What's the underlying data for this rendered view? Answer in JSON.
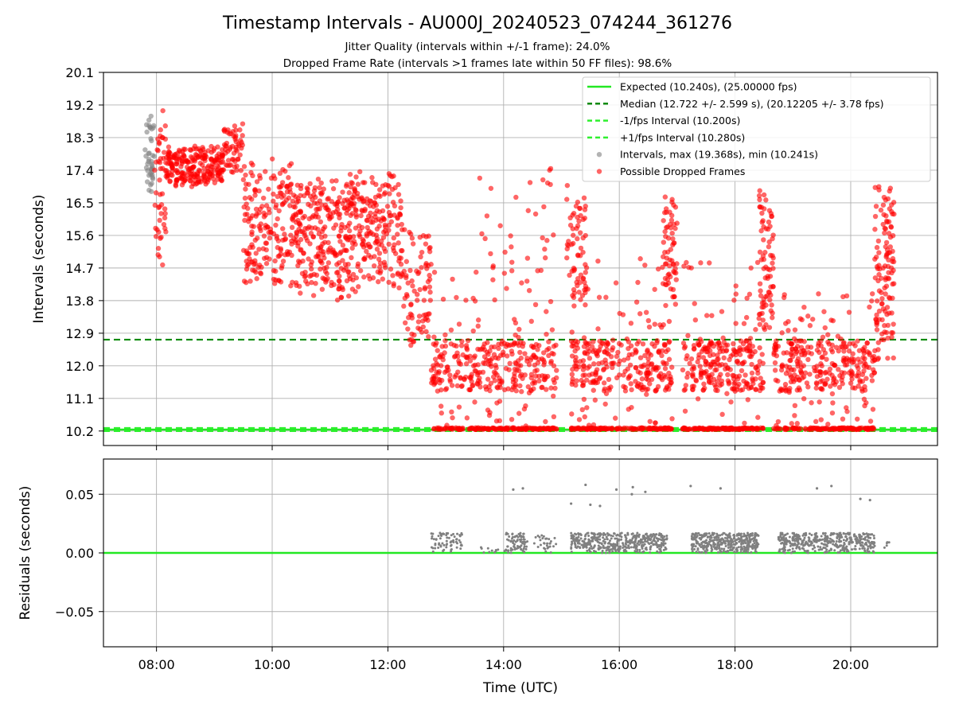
{
  "title": "Timestamp Intervals - AU000J_20240523_074244_361276",
  "subtitle_1": "Jitter Quality (intervals within +/-1 frame): 24.0%",
  "subtitle_2": "Dropped Frame Rate (intervals >1 frames late within 50 FF files): 98.6%",
  "colors": {
    "expected": "#22e822",
    "median": "#0a8a0a",
    "interval_bounds": "#2ff02f",
    "intervals": "#808080",
    "dropped": "#ff0000",
    "grid": "#b0b0b0"
  },
  "chart_data": [
    {
      "type": "scatter",
      "panel": "intervals",
      "ylabel": "Intervals (seconds)",
      "xlabel": "",
      "xlim": [
        "07:05",
        "21:30"
      ],
      "ylim": [
        9.8,
        20.1
      ],
      "xticks": [
        "08:00",
        "10:00",
        "12:00",
        "14:00",
        "16:00",
        "18:00",
        "20:00"
      ],
      "yticks": [
        "10.2",
        "11.1",
        "12.0",
        "12.9",
        "13.8",
        "14.7",
        "15.6",
        "16.5",
        "17.4",
        "18.3",
        "19.2",
        "20.1"
      ],
      "grid": true,
      "legend_position": "top-right",
      "lines": [
        {
          "name": "Expected (10.240s), (25.00000 fps)",
          "y": 10.24,
          "style": "solid"
        },
        {
          "name": "Median (12.722 +/- 2.599 s), (20.12205 +/- 3.78 fps)",
          "y": 12.722,
          "style": "dashed"
        },
        {
          "name": "-1/fps Interval (10.200s)",
          "y": 10.2,
          "style": "dashed"
        },
        {
          "name": "+1/fps Interval (10.280s)",
          "y": 10.28,
          "style": "dashed"
        }
      ],
      "series": [
        {
          "name": "Intervals, max (19.368s), min (10.241s)",
          "marker": "circle",
          "clusters": [
            {
              "x_start": "07:48",
              "x_end": "07:58",
              "y_min": 16.8,
              "y_max": 18.9,
              "count": 40
            }
          ]
        },
        {
          "name": "Possible Dropped Frames",
          "marker": "circle",
          "clusters": [
            {
              "x_start": "07:58",
              "x_end": "08:10",
              "y_min": 14.3,
              "y_max": 19.3,
              "count": 50
            },
            {
              "x_start": "08:10",
              "x_end": "09:10",
              "y_min": 16.9,
              "y_max": 18.1,
              "count": 240
            },
            {
              "x_start": "09:10",
              "x_end": "09:30",
              "y_min": 17.2,
              "y_max": 18.8,
              "count": 55
            },
            {
              "x_start": "09:30",
              "x_end": "10:20",
              "y_min": 14.0,
              "y_max": 17.9,
              "count": 180
            },
            {
              "x_start": "10:20",
              "x_end": "11:20",
              "y_min": 13.7,
              "y_max": 17.4,
              "count": 260
            },
            {
              "x_start": "11:20",
              "x_end": "12:15",
              "y_min": 13.9,
              "y_max": 17.5,
              "count": 220
            },
            {
              "x_start": "12:15",
              "x_end": "12:45",
              "y_min": 12.3,
              "y_max": 16.2,
              "count": 80
            },
            {
              "x_start": "12:45",
              "x_end": "13:35",
              "y_min": 10.24,
              "y_max": 14.6,
              "count": 180
            },
            {
              "x_start": "13:35",
              "x_end": "14:55",
              "y_min": 10.24,
              "y_max": 17.5,
              "count": 330
            },
            {
              "x_start": "15:05",
              "x_end": "15:25",
              "y_min": 13.5,
              "y_max": 17.1,
              "count": 60
            },
            {
              "x_start": "15:10",
              "x_end": "16:55",
              "y_min": 10.24,
              "y_max": 15.0,
              "count": 420
            },
            {
              "x_start": "16:45",
              "x_end": "17:00",
              "y_min": 13.5,
              "y_max": 16.9,
              "count": 60
            },
            {
              "x_start": "17:05",
              "x_end": "18:30",
              "y_min": 10.24,
              "y_max": 15.0,
              "count": 380
            },
            {
              "x_start": "18:25",
              "x_end": "18:40",
              "y_min": 12.5,
              "y_max": 17.0,
              "count": 70
            },
            {
              "x_start": "18:40",
              "x_end": "20:25",
              "y_min": 10.24,
              "y_max": 14.0,
              "count": 420
            },
            {
              "x_start": "20:25",
              "x_end": "20:45",
              "y_min": 12.0,
              "y_max": 17.4,
              "count": 120
            }
          ]
        }
      ]
    },
    {
      "type": "scatter",
      "panel": "residuals",
      "ylabel": "Residuals (seconds)",
      "xlabel": "Time (UTC)",
      "xlim": [
        "07:05",
        "21:30"
      ],
      "ylim": [
        -0.08,
        0.08
      ],
      "xticks": [
        "08:00",
        "10:00",
        "12:00",
        "14:00",
        "16:00",
        "18:00",
        "20:00"
      ],
      "yticks": [
        "0.05",
        "0.00",
        "−0.05"
      ],
      "grid": true,
      "lines": [
        {
          "name": "zero",
          "y": 0.0,
          "style": "solid"
        }
      ],
      "series": [
        {
          "name": "Residuals",
          "clusters": [
            {
              "x_start": "12:45",
              "x_end": "13:20",
              "y_min": 0.0,
              "y_max": 0.017,
              "count": 70
            },
            {
              "x_start": "13:35",
              "x_end": "13:55",
              "y_min": 0.0,
              "y_max": 0.006,
              "count": 10
            },
            {
              "x_start": "14:00",
              "x_end": "14:25",
              "y_min": 0.0,
              "y_max": 0.017,
              "count": 80
            },
            {
              "x_start": "14:30",
              "x_end": "14:55",
              "y_min": 0.0,
              "y_max": 0.015,
              "count": 30
            },
            {
              "x_start": "15:10",
              "x_end": "16:50",
              "y_min": 0.0,
              "y_max": 0.017,
              "count": 420
            },
            {
              "x_start": "17:15",
              "x_end": "18:25",
              "y_min": 0.0,
              "y_max": 0.017,
              "count": 380
            },
            {
              "x_start": "18:45",
              "x_end": "20:25",
              "y_min": 0.0,
              "y_max": 0.017,
              "count": 420
            },
            {
              "x_start": "20:35",
              "x_end": "20:40",
              "y_min": 0.0,
              "y_max": 0.012,
              "count": 5
            }
          ],
          "outliers": [
            {
              "x": "14:10",
              "y": 0.054
            },
            {
              "x": "14:20",
              "y": 0.055
            },
            {
              "x": "15:10",
              "y": 0.042
            },
            {
              "x": "15:25",
              "y": 0.058
            },
            {
              "x": "15:30",
              "y": 0.041
            },
            {
              "x": "15:40",
              "y": 0.04
            },
            {
              "x": "15:57",
              "y": 0.054
            },
            {
              "x": "16:14",
              "y": 0.056
            },
            {
              "x": "16:13",
              "y": 0.05
            },
            {
              "x": "16:27",
              "y": 0.052
            },
            {
              "x": "17:14",
              "y": 0.057
            },
            {
              "x": "17:45",
              "y": 0.055
            },
            {
              "x": "19:25",
              "y": 0.055
            },
            {
              "x": "19:40",
              "y": 0.057
            },
            {
              "x": "20:10",
              "y": 0.046
            },
            {
              "x": "20:20",
              "y": 0.045
            }
          ]
        }
      ]
    }
  ]
}
